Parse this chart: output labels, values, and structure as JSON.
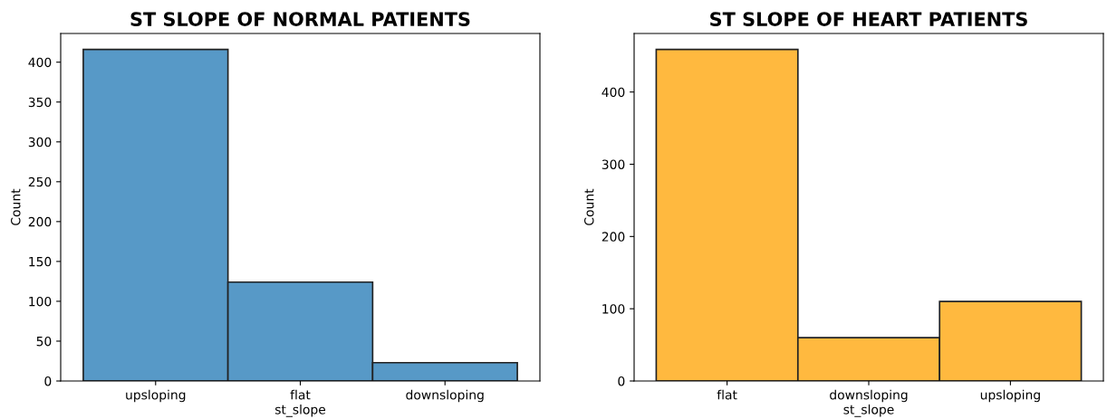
{
  "chart_data": [
    {
      "type": "bar",
      "title": "ST SLOPE OF NORMAL PATIENTS",
      "xlabel": "st_slope",
      "ylabel": "Count",
      "categories": [
        "upsloping",
        "flat",
        "downsloping"
      ],
      "values": [
        416,
        124,
        23
      ],
      "color": "#5799c7",
      "ylim": [
        0,
        436
      ],
      "yticks": [
        0,
        50,
        100,
        150,
        200,
        250,
        300,
        350,
        400
      ],
      "grid": false
    },
    {
      "type": "bar",
      "title": "ST SLOPE OF HEART PATIENTS",
      "xlabel": "st_slope",
      "ylabel": "Count",
      "categories": [
        "flat",
        "downsloping",
        "upsloping"
      ],
      "values": [
        459,
        60,
        110
      ],
      "color": "#ffb93f",
      "ylim": [
        0,
        481
      ],
      "yticks": [
        0,
        100,
        200,
        300,
        400
      ],
      "grid": false
    }
  ]
}
